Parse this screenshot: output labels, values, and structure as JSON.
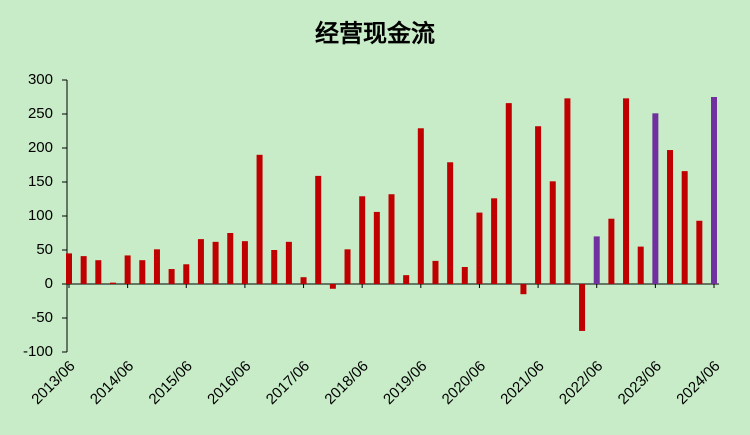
{
  "chart_data": {
    "type": "bar",
    "title": "经营现金流",
    "categories": [
      "2013/06",
      null,
      null,
      null,
      "2014/06",
      null,
      null,
      null,
      "2015/06",
      null,
      null,
      null,
      "2016/06",
      null,
      null,
      null,
      "2017/06",
      null,
      null,
      null,
      "2018/06",
      null,
      null,
      null,
      "2019/06",
      null,
      null,
      null,
      "2020/06",
      null,
      null,
      null,
      "2021/06",
      null,
      null,
      null,
      "2022/06",
      null,
      null,
      null,
      "2023/06",
      null,
      null,
      null,
      "2024/06"
    ],
    "values": [
      45,
      41,
      35,
      2,
      42,
      35,
      51,
      22,
      29,
      66,
      62,
      75,
      63,
      190,
      50,
      62,
      10,
      159,
      -7,
      51,
      129,
      106,
      132,
      13,
      229,
      34,
      179,
      25,
      105,
      126,
      266,
      -15,
      232,
      151,
      273,
      -69,
      70,
      96,
      273,
      55,
      251,
      197,
      166,
      93,
      275
    ],
    "colors": [
      "#c00000",
      "#c00000",
      "#c00000",
      "#c00000",
      "#c00000",
      "#c00000",
      "#c00000",
      "#c00000",
      "#c00000",
      "#c00000",
      "#c00000",
      "#c00000",
      "#c00000",
      "#c00000",
      "#c00000",
      "#c00000",
      "#c00000",
      "#c00000",
      "#c00000",
      "#c00000",
      "#c00000",
      "#c00000",
      "#c00000",
      "#c00000",
      "#c00000",
      "#c00000",
      "#c00000",
      "#c00000",
      "#c00000",
      "#c00000",
      "#c00000",
      "#c00000",
      "#c00000",
      "#c00000",
      "#c00000",
      "#c00000",
      "#7030a0",
      "#c00000",
      "#c00000",
      "#c00000",
      "#7030a0",
      "#c00000",
      "#c00000",
      "#c00000",
      "#7030a0"
    ],
    "ylim": [
      -100,
      300
    ],
    "yticks": [
      -100,
      -50,
      0,
      50,
      100,
      150,
      200,
      250,
      300
    ],
    "grid": false
  }
}
